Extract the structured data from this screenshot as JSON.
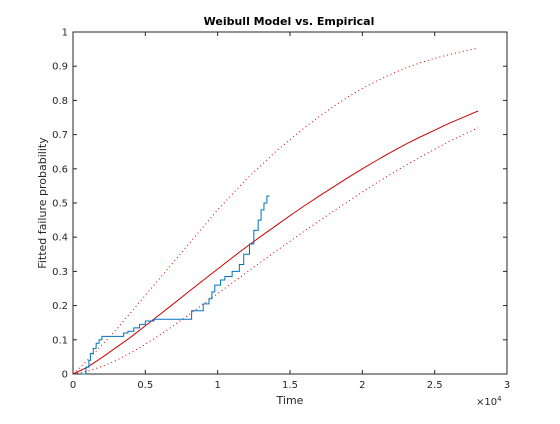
{
  "chart_data": {
    "type": "line",
    "title": "Weibull Model vs. Empirical",
    "xlabel": "Time",
    "ylabel": "Fitted failure probability",
    "x_exponent_label": "×10",
    "x_exponent_power": "4",
    "xlim": [
      0,
      30000
    ],
    "ylim": [
      0,
      1
    ],
    "x_ticks": [
      0,
      5000,
      10000,
      15000,
      20000,
      25000,
      30000
    ],
    "x_tick_labels": [
      "0",
      "0.5",
      "1",
      "1.5",
      "2",
      "2.5",
      "3"
    ],
    "y_ticks": [
      0,
      0.1,
      0.2,
      0.3,
      0.4,
      0.5,
      0.6,
      0.7,
      0.8,
      0.9,
      1
    ],
    "y_tick_labels": [
      "0",
      "0.1",
      "0.2",
      "0.3",
      "0.4",
      "0.5",
      "0.6",
      "0.7",
      "0.8",
      "0.9",
      "1"
    ],
    "grid": false,
    "box": true,
    "colors": {
      "model": "#d00000",
      "empirical": "#0072bd",
      "axes": "#262626"
    },
    "series": [
      {
        "style": "solid",
        "color": "#d00000",
        "x": [
          0,
          1000,
          2000,
          3000,
          4000,
          5000,
          6000,
          7000,
          8000,
          9000,
          10000,
          11000,
          12000,
          13000,
          14000,
          15000,
          16000,
          17000,
          18000,
          19000,
          20000,
          21000,
          22000,
          23000,
          24000,
          25000,
          26000,
          27000,
          28000
        ],
        "y": [
          0,
          0.02,
          0.048,
          0.078,
          0.108,
          0.141,
          0.174,
          0.207,
          0.241,
          0.274,
          0.307,
          0.34,
          0.372,
          0.403,
          0.433,
          0.463,
          0.492,
          0.52,
          0.547,
          0.574,
          0.6,
          0.625,
          0.649,
          0.672,
          0.693,
          0.713,
          0.733,
          0.751,
          0.769
        ]
      },
      {
        "style": "dotted",
        "color": "#d00000",
        "x": [
          0,
          1000,
          2000,
          3000,
          4000,
          5000,
          6000,
          7000,
          8000,
          9000,
          10000,
          11000,
          12000,
          13000,
          14000,
          15000,
          16000,
          17000,
          18000,
          19000,
          20000,
          21000,
          22000,
          23000,
          24000,
          25000,
          26000,
          27000,
          28000
        ],
        "y": [
          0,
          0.04,
          0.085,
          0.13,
          0.18,
          0.23,
          0.28,
          0.33,
          0.38,
          0.43,
          0.48,
          0.525,
          0.57,
          0.61,
          0.65,
          0.685,
          0.72,
          0.752,
          0.782,
          0.81,
          0.835,
          0.857,
          0.877,
          0.895,
          0.91,
          0.923,
          0.934,
          0.944,
          0.953
        ]
      },
      {
        "style": "dotted",
        "color": "#d00000",
        "x": [
          0,
          1000,
          2000,
          3000,
          4000,
          5000,
          6000,
          7000,
          8000,
          9000,
          10000,
          11000,
          12000,
          13000,
          14000,
          15000,
          16000,
          17000,
          18000,
          19000,
          20000,
          21000,
          22000,
          23000,
          24000,
          25000,
          26000,
          27000,
          28000
        ],
        "y": [
          0,
          0.008,
          0.022,
          0.04,
          0.062,
          0.087,
          0.114,
          0.143,
          0.173,
          0.204,
          0.235,
          0.266,
          0.297,
          0.328,
          0.358,
          0.388,
          0.418,
          0.447,
          0.476,
          0.504,
          0.532,
          0.559,
          0.585,
          0.61,
          0.634,
          0.657,
          0.68,
          0.7,
          0.72
        ]
      },
      {
        "style": "stairs",
        "color": "#0072bd",
        "x": [
          600,
          900,
          1100,
          1200,
          1400,
          1600,
          1800,
          2000,
          2400,
          3500,
          3800,
          4200,
          4600,
          5000,
          5600,
          8200,
          9000,
          9400,
          9600,
          9800,
          10200,
          10500,
          11000,
          11500,
          11800,
          12200,
          12500,
          12800,
          13000,
          13200,
          13400,
          13600
        ],
        "y": [
          0,
          0.02,
          0.04,
          0.06,
          0.075,
          0.09,
          0.1,
          0.11,
          0.11,
          0.12,
          0.125,
          0.135,
          0.145,
          0.155,
          0.16,
          0.185,
          0.205,
          0.22,
          0.24,
          0.26,
          0.275,
          0.285,
          0.3,
          0.32,
          0.35,
          0.38,
          0.42,
          0.45,
          0.48,
          0.5,
          0.52,
          0.52
        ]
      }
    ]
  }
}
